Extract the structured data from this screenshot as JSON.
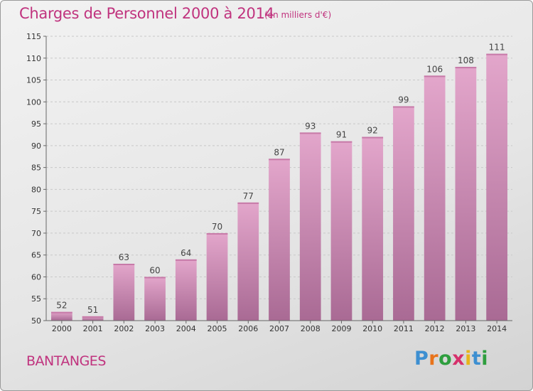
{
  "chart_data": {
    "type": "bar",
    "title": "Charges de Personnel 2000 à 2014",
    "subtitle": "(en milliers d'€)",
    "categories": [
      "2000",
      "2001",
      "2002",
      "2003",
      "2004",
      "2005",
      "2006",
      "2007",
      "2008",
      "2009",
      "2010",
      "2011",
      "2012",
      "2013",
      "2014"
    ],
    "values": [
      52,
      51,
      63,
      60,
      64,
      70,
      77,
      87,
      93,
      91,
      92,
      99,
      106,
      108,
      111
    ],
    "ylim": [
      50,
      115
    ],
    "yticks": [
      50,
      55,
      60,
      65,
      70,
      75,
      80,
      85,
      90,
      95,
      100,
      105,
      110,
      115
    ],
    "xlabel": "",
    "ylabel": "",
    "grid": true,
    "bar_color": "#d98bb9"
  },
  "footer": {
    "commune": "BANTANGES",
    "brand": "Proxiti"
  },
  "colors": {
    "accent": "#c0337e"
  }
}
